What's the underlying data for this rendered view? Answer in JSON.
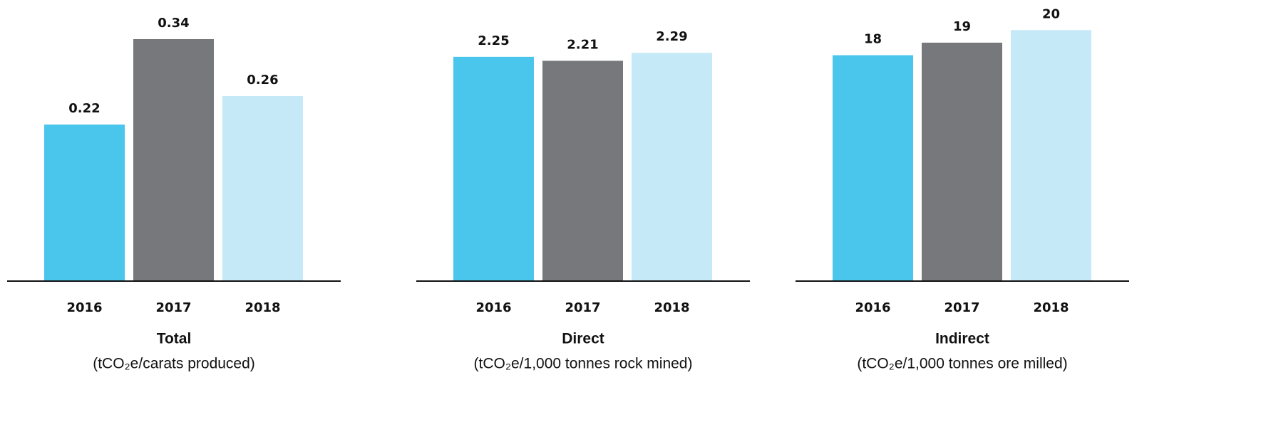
{
  "chart_data": [
    {
      "type": "bar",
      "title": "Total",
      "subtitle": "(tCO₂e/carats produced)",
      "categories": [
        "2016",
        "2017",
        "2018"
      ],
      "values": [
        0.22,
        0.34,
        0.26
      ],
      "colors": [
        "#4ac6ec",
        "#77787c",
        "#c5e9f7"
      ],
      "ylim": [
        0,
        0.395
      ]
    },
    {
      "type": "bar",
      "title": "Direct",
      "subtitle": "(tCO₂e/1,000 tonnes rock mined)",
      "categories": [
        "2016",
        "2017",
        "2018"
      ],
      "values": [
        2.25,
        2.21,
        2.29
      ],
      "colors": [
        "#4ac6ec",
        "#77787c",
        "#c5e9f7"
      ],
      "ylim": [
        0,
        2.82
      ]
    },
    {
      "type": "bar",
      "title": "Indirect",
      "subtitle": "(tCO₂e/1,000 tonnes ore milled)",
      "categories": [
        "2016",
        "2017",
        "2018"
      ],
      "values": [
        18,
        19,
        20
      ],
      "colors": [
        "#4ac6ec",
        "#77787c",
        "#c5e9f7"
      ],
      "ylim": [
        0,
        22.4
      ]
    }
  ]
}
